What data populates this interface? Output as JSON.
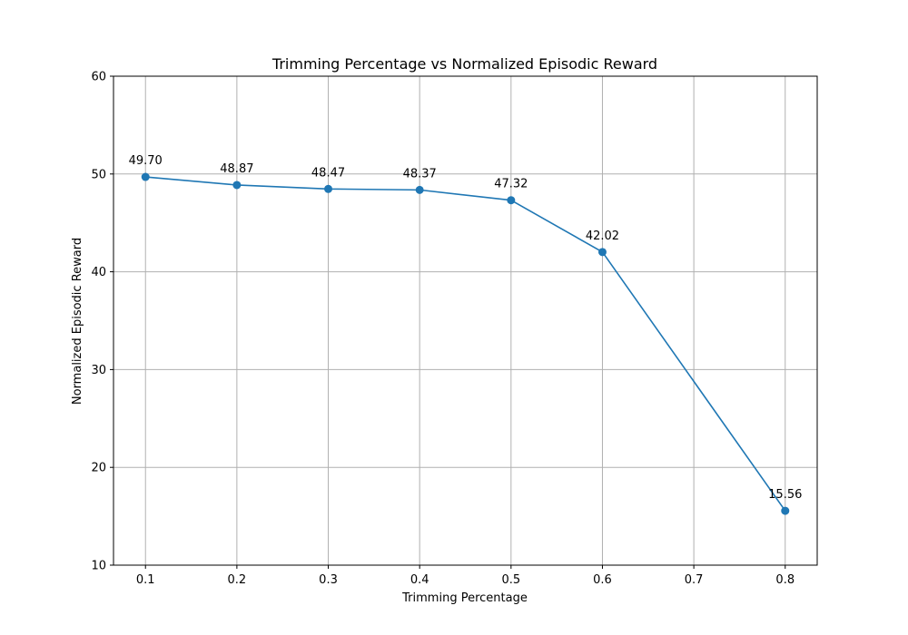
{
  "chart_data": {
    "type": "line",
    "title": "Trimming Percentage vs Normalized Episodic Reward",
    "xlabel": "Trimming Percentage",
    "ylabel": "Normalized Episodic Reward",
    "x": [
      0.1,
      0.2,
      0.3,
      0.4,
      0.5,
      0.6,
      0.8
    ],
    "series": [
      {
        "values": [
          49.7,
          48.87,
          48.47,
          48.37,
          47.32,
          42.02,
          15.56
        ],
        "labels": [
          "49.70",
          "48.87",
          "48.47",
          "48.37",
          "47.32",
          "42.02",
          "15.56"
        ],
        "color": "#1f77b4",
        "marker": "circle"
      }
    ],
    "xlim": [
      0.065,
      0.835
    ],
    "ylim": [
      10,
      60
    ],
    "xticks": [
      0.1,
      0.2,
      0.3,
      0.4,
      0.5,
      0.6,
      0.7,
      0.8
    ],
    "xtick_labels": [
      "0.1",
      "0.2",
      "0.3",
      "0.4",
      "0.5",
      "0.6",
      "0.7",
      "0.8"
    ],
    "yticks": [
      10,
      20,
      30,
      40,
      50,
      60
    ],
    "ytick_labels": [
      "10",
      "20",
      "30",
      "40",
      "50",
      "60"
    ],
    "grid": true,
    "legend": "none"
  }
}
